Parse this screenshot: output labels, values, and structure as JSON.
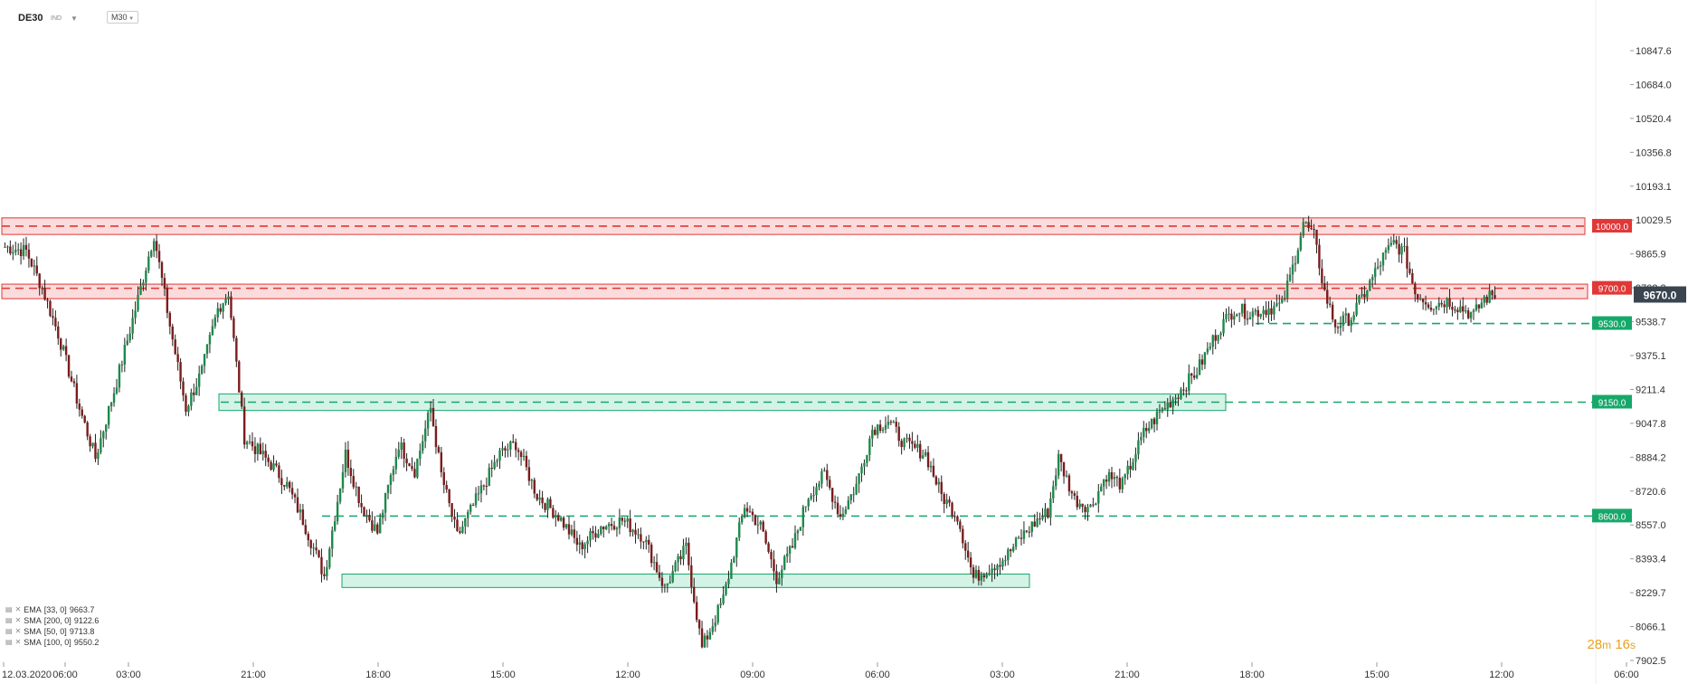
{
  "header": {
    "symbol": "DE30",
    "symbol_sub": "IND",
    "timeframe": "M30"
  },
  "chart_data": {
    "type": "candlestick",
    "y_ticks": [
      "10847.6",
      "10684.0",
      "10520.4",
      "10356.8",
      "10193.1",
      "10029.5",
      "9865.9",
      "9702.3",
      "9538.7",
      "9375.1",
      "9211.4",
      "9047.8",
      "8884.2",
      "8720.6",
      "8557.0",
      "8393.4",
      "8229.7",
      "8066.1",
      "7902.5"
    ],
    "ylim": [
      7902.5,
      10847.6
    ],
    "x_ticks": [
      "12.03.2020",
      "06:00",
      "03:00",
      "21:00",
      "18:00",
      "15:00",
      "12:00",
      "09:00",
      "06:00",
      "03:00",
      "21:00",
      "18:00",
      "15:00",
      "12:00",
      "06:00"
    ],
    "current_price": "9670.0",
    "price_labels": [
      {
        "value": "10000.0",
        "color": "#e03838"
      },
      {
        "value": "9700.0",
        "color": "#e03838"
      },
      {
        "value": "9530.0",
        "color": "#16a86a"
      },
      {
        "value": "9150.0",
        "color": "#16a86a"
      },
      {
        "value": "8600.0",
        "color": "#16a86a"
      }
    ],
    "resistance_levels": [
      10000.0,
      9700.0
    ],
    "support_levels": [
      9530.0,
      9150.0,
      8600.0
    ],
    "zones": [
      {
        "type": "resistance",
        "low": 9960,
        "high": 10040
      },
      {
        "type": "resistance",
        "low": 9650,
        "high": 9720
      },
      {
        "type": "support",
        "low": 9110,
        "high": 9190
      },
      {
        "type": "support",
        "low": 8255,
        "high": 8320
      }
    ],
    "path_keypoints": [
      [
        0,
        9900
      ],
      [
        8,
        9880
      ],
      [
        14,
        9700
      ],
      [
        20,
        9480
      ],
      [
        28,
        9120
      ],
      [
        34,
        8880
      ],
      [
        42,
        9250
      ],
      [
        50,
        9650
      ],
      [
        56,
        9960
      ],
      [
        62,
        9520
      ],
      [
        68,
        9120
      ],
      [
        74,
        9300
      ],
      [
        80,
        9600
      ],
      [
        84,
        9680
      ],
      [
        90,
        8980
      ],
      [
        100,
        8850
      ],
      [
        106,
        8750
      ],
      [
        112,
        8580
      ],
      [
        120,
        8310
      ],
      [
        128,
        8900
      ],
      [
        134,
        8650
      ],
      [
        140,
        8520
      ],
      [
        148,
        8950
      ],
      [
        154,
        8820
      ],
      [
        160,
        9120
      ],
      [
        164,
        8800
      ],
      [
        170,
        8500
      ],
      [
        178,
        8700
      ],
      [
        186,
        8900
      ],
      [
        192,
        8950
      ],
      [
        200,
        8700
      ],
      [
        208,
        8600
      ],
      [
        216,
        8450
      ],
      [
        224,
        8550
      ],
      [
        232,
        8580
      ],
      [
        240,
        8500
      ],
      [
        248,
        8250
      ],
      [
        256,
        8450
      ],
      [
        262,
        7960
      ],
      [
        270,
        8200
      ],
      [
        278,
        8650
      ],
      [
        284,
        8550
      ],
      [
        290,
        8300
      ],
      [
        296,
        8450
      ],
      [
        302,
        8700
      ],
      [
        308,
        8800
      ],
      [
        314,
        8600
      ],
      [
        320,
        8750
      ],
      [
        326,
        9020
      ],
      [
        332,
        9060
      ],
      [
        338,
        8950
      ],
      [
        346,
        8900
      ],
      [
        352,
        8700
      ],
      [
        358,
        8600
      ],
      [
        364,
        8300
      ],
      [
        370,
        8350
      ],
      [
        376,
        8400
      ],
      [
        382,
        8500
      ],
      [
        388,
        8580
      ],
      [
        392,
        8620
      ],
      [
        396,
        8880
      ],
      [
        402,
        8680
      ],
      [
        408,
        8640
      ],
      [
        414,
        8800
      ],
      [
        420,
        8750
      ],
      [
        428,
        9000
      ],
      [
        434,
        9100
      ],
      [
        440,
        9180
      ],
      [
        448,
        9300
      ],
      [
        456,
        9500
      ],
      [
        462,
        9600
      ],
      [
        468,
        9580
      ],
      [
        474,
        9600
      ],
      [
        480,
        9620
      ],
      [
        484,
        9800
      ],
      [
        488,
        10020
      ],
      [
        492,
        9950
      ],
      [
        496,
        9680
      ],
      [
        500,
        9520
      ],
      [
        506,
        9560
      ],
      [
        512,
        9700
      ],
      [
        518,
        9850
      ],
      [
        522,
        9920
      ],
      [
        526,
        9870
      ],
      [
        530,
        9680
      ],
      [
        536,
        9620
      ],
      [
        542,
        9640
      ],
      [
        548,
        9600
      ],
      [
        552,
        9570
      ],
      [
        556,
        9650
      ],
      [
        560,
        9670
      ]
    ],
    "indicators": [
      {
        "name": "EMA",
        "params": "[33, 0]",
        "value": "9663.7"
      },
      {
        "name": "SMA",
        "params": "[200, 0]",
        "value": "9122.6"
      },
      {
        "name": "SMA",
        "params": "[50, 0]",
        "value": "9713.8"
      },
      {
        "name": "SMA",
        "params": "[100, 0]",
        "value": "9550.2"
      }
    ],
    "candle_up_color": "#1c8a4a",
    "candle_down_color": "#7a1c1c"
  },
  "timer": {
    "minutes": "28",
    "minutes_unit": "m",
    "seconds": "16",
    "seconds_unit": "s"
  }
}
